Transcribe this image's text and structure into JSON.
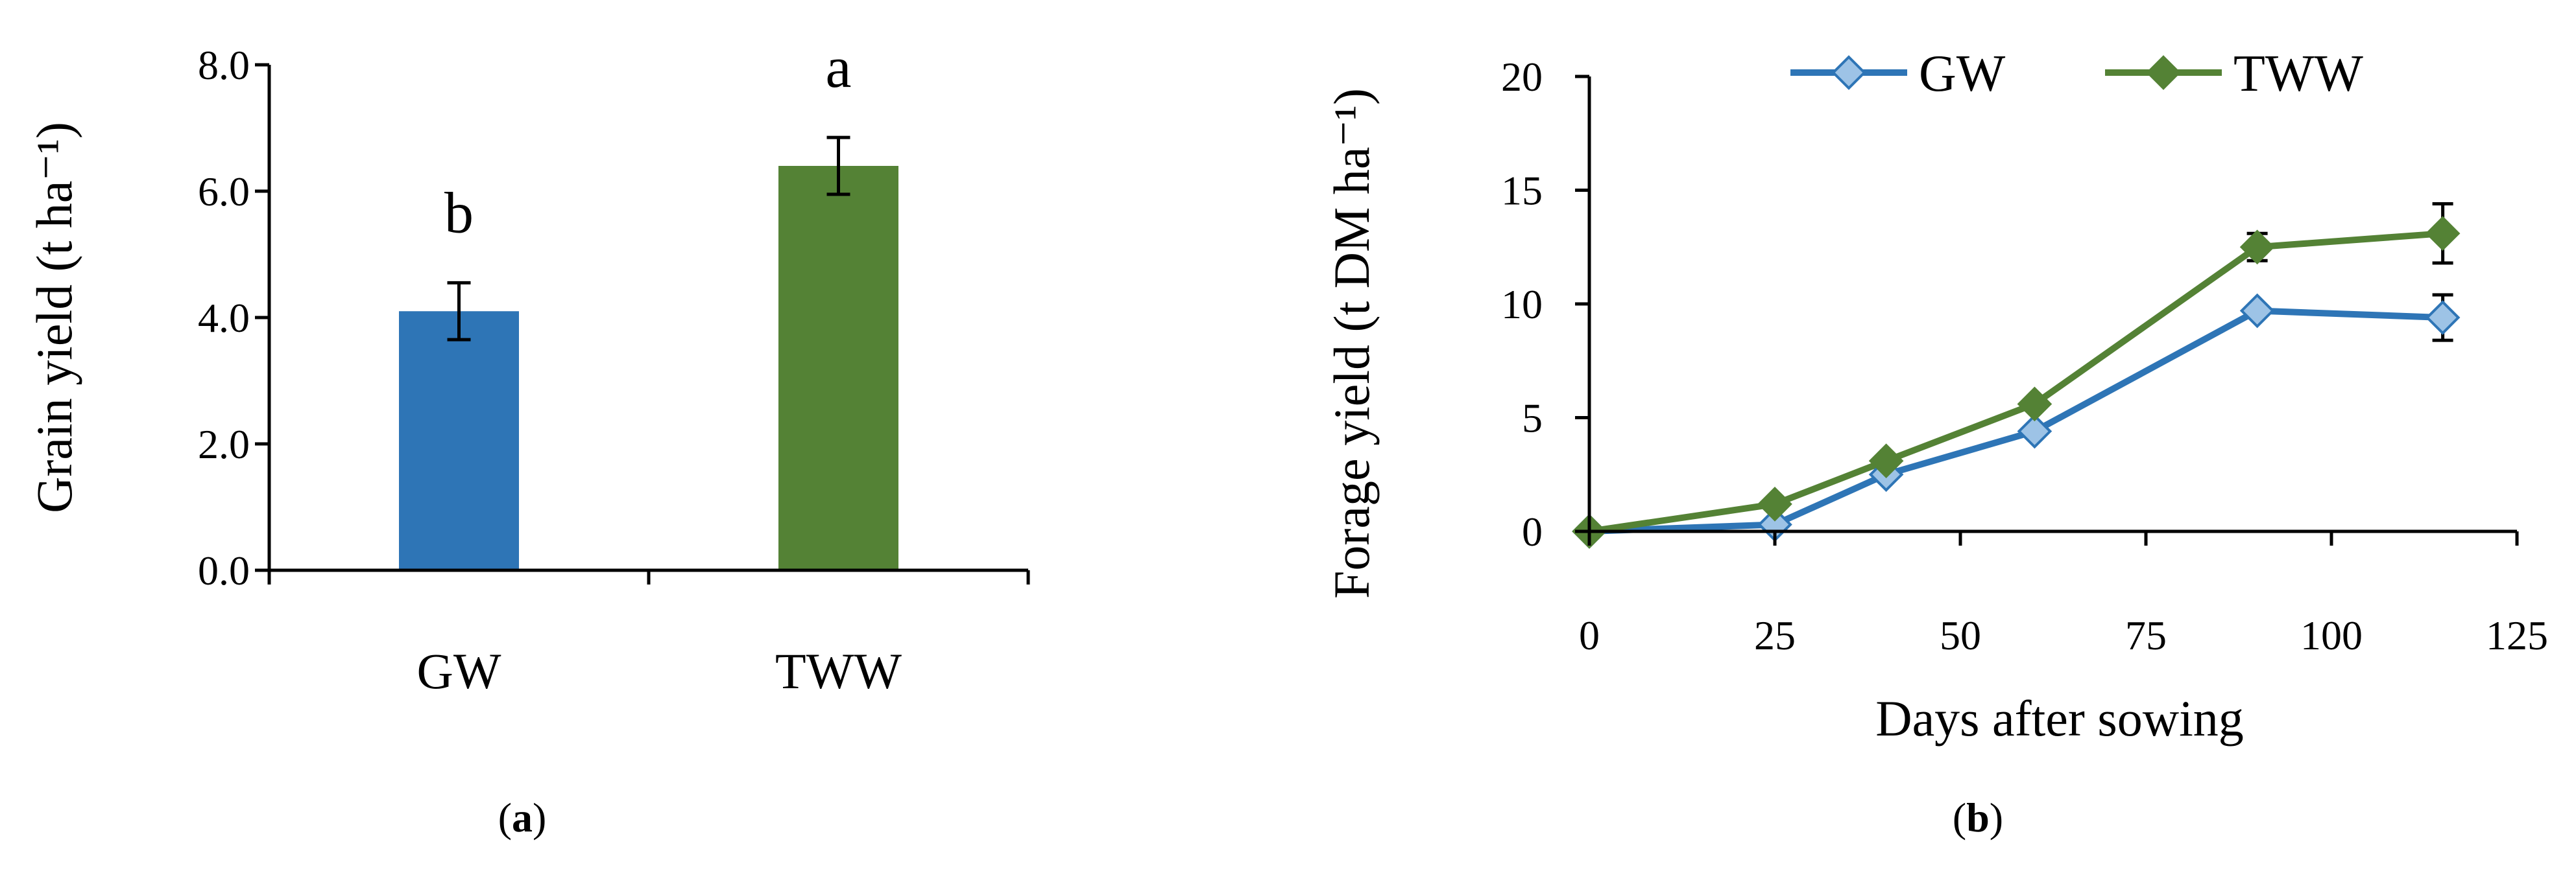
{
  "chart_data": [
    {
      "type": "bar",
      "panel": "a",
      "categories": [
        "GW",
        "TWW"
      ],
      "values": [
        4.1,
        6.4
      ],
      "errors": [
        0.45,
        0.45
      ],
      "significance_letters": [
        "b",
        "a"
      ],
      "ylabel": "Grain yield (t ha⁻¹)",
      "xlabel": "",
      "ylim": [
        0,
        8
      ],
      "yticks": [
        "0.0",
        "2.0",
        "4.0",
        "6.0",
        "8.0"
      ],
      "grid": false,
      "colors": [
        "#2e75b6",
        "#548235"
      ]
    },
    {
      "type": "line",
      "panel": "b",
      "x": [
        0,
        25,
        40,
        60,
        90,
        115
      ],
      "series": [
        {
          "name": "GW",
          "values": [
            0,
            0.3,
            2.5,
            4.4,
            9.7,
            9.4
          ],
          "errors": [
            0,
            0,
            0,
            0,
            0,
            1.0
          ],
          "color": "#2e75b6",
          "marker_fill": "#9dc3e6"
        },
        {
          "name": "TWW",
          "values": [
            0,
            1.2,
            3.1,
            5.6,
            12.5,
            13.1
          ],
          "errors": [
            0,
            0,
            0,
            0,
            0.6,
            1.3
          ],
          "color": "#548235",
          "marker_fill": "#548235"
        }
      ],
      "xlabel": "Days after sowing",
      "ylabel": "Forage yield (t DM ha⁻¹)",
      "xlim": [
        0,
        125
      ],
      "ylim": [
        0,
        20
      ],
      "xticks": [
        "0",
        "25",
        "50",
        "75",
        "100",
        "125"
      ],
      "yticks": [
        "0",
        "5",
        "10",
        "15",
        "20"
      ],
      "legend_position": "top",
      "grid": false
    }
  ],
  "panel_labels": [
    "a",
    "b"
  ]
}
